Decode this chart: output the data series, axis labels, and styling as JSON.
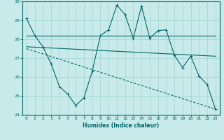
{
  "xlabel": "Humidex (Indice chaleur)",
  "bg_color": "#c8eaea",
  "grid_color": "#a8d8d8",
  "line_color": "#006666",
  "xlim": [
    -0.5,
    23.5
  ],
  "ylim": [
    24,
    30
  ],
  "yticks": [
    24,
    25,
    26,
    27,
    28,
    29,
    30
  ],
  "xticks": [
    0,
    1,
    2,
    3,
    4,
    5,
    6,
    7,
    8,
    9,
    10,
    11,
    12,
    13,
    14,
    15,
    16,
    17,
    18,
    19,
    20,
    21,
    22,
    23
  ],
  "line1_x": [
    0,
    1,
    2,
    3,
    4,
    5,
    6,
    7,
    8,
    9,
    10,
    11,
    12,
    13,
    14,
    15,
    16,
    17,
    18,
    19,
    20,
    21,
    22,
    23
  ],
  "line1_y": [
    29.1,
    28.2,
    27.6,
    26.7,
    25.5,
    25.1,
    24.5,
    24.9,
    26.3,
    28.2,
    28.5,
    29.8,
    29.3,
    28.05,
    29.75,
    28.05,
    28.45,
    28.5,
    27.15,
    26.5,
    27.1,
    26.05,
    25.6,
    24.3
  ],
  "line2_x": [
    0,
    23
  ],
  "line2_y": [
    28.2,
    28.2
  ],
  "line3_x": [
    0,
    23
  ],
  "line3_y": [
    27.6,
    27.1
  ],
  "line4_x": [
    0,
    23
  ],
  "line4_y": [
    27.5,
    24.3
  ],
  "line1_marker_x": [
    0,
    1,
    2,
    3,
    4,
    5,
    6,
    7,
    8,
    9,
    10,
    11,
    12,
    13,
    14,
    15,
    16,
    17,
    18,
    19,
    20,
    21,
    22,
    23
  ],
  "line1_marker_y": [
    29.1,
    28.2,
    27.6,
    26.7,
    25.5,
    25.1,
    24.5,
    24.9,
    26.3,
    28.2,
    28.5,
    29.8,
    29.3,
    28.05,
    29.75,
    28.05,
    28.45,
    28.5,
    27.15,
    26.5,
    27.1,
    26.05,
    25.6,
    24.3
  ]
}
